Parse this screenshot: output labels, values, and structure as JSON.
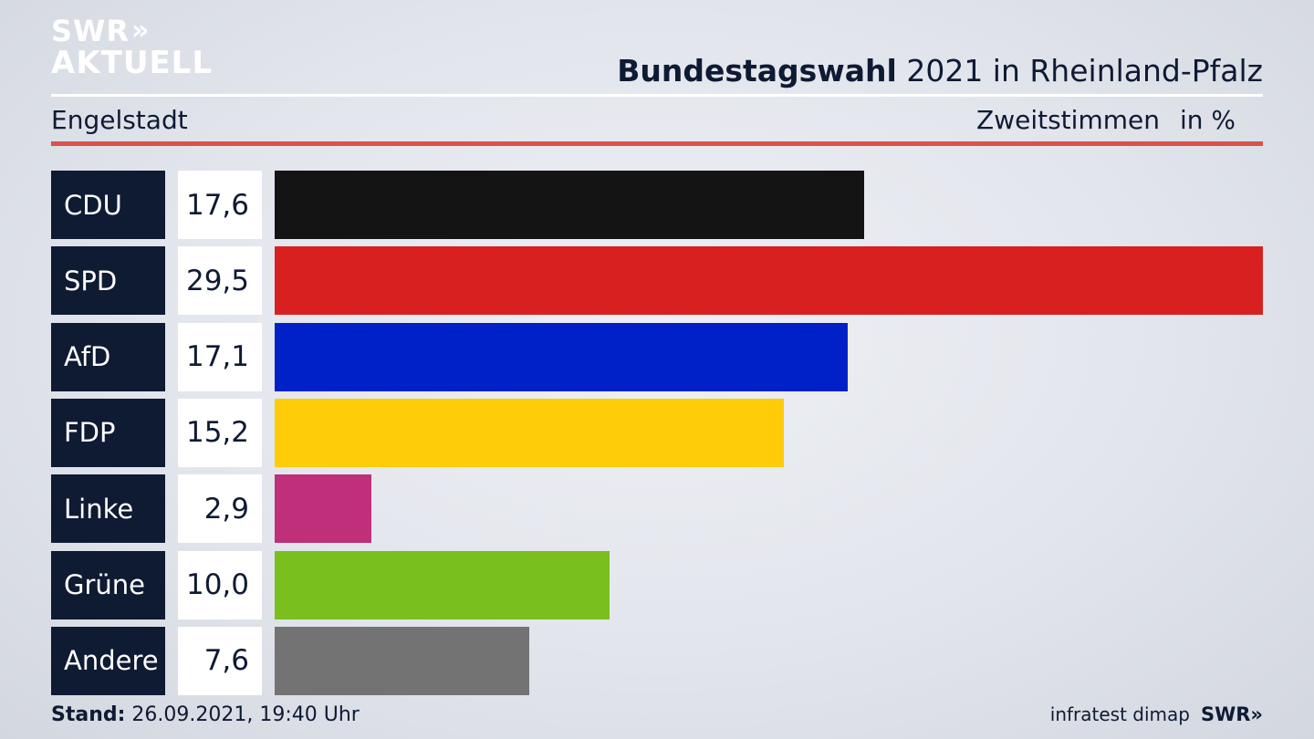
{
  "logo": {
    "line1": "SWR",
    "chevrons": "»",
    "line2": "AKTUELL"
  },
  "header": {
    "title_bold": "Bundestagswahl",
    "title_rest": " 2021 in Rheinland-Pfalz",
    "region": "Engelstadt",
    "measure": "Zweitstimmen",
    "unit": "in %"
  },
  "chart_data": {
    "type": "bar",
    "orientation": "horizontal",
    "title": "Bundestagswahl 2021 in Rheinland-Pfalz",
    "subtitle": "Engelstadt",
    "xlabel": "Zweitstimmen in %",
    "xlim": [
      0,
      29.5
    ],
    "categories": [
      "CDU",
      "SPD",
      "AfD",
      "FDP",
      "Linke",
      "Grüne",
      "Andere"
    ],
    "values": [
      17.6,
      29.5,
      17.1,
      15.2,
      2.9,
      10.0,
      7.6
    ],
    "value_labels": [
      "17,6",
      "29,5",
      "17,1",
      "15,2",
      "2,9",
      "10,0",
      "7,6"
    ],
    "colors": [
      "#141414",
      "#d92020",
      "#0021c8",
      "#ffcc0a",
      "#bf2f7a",
      "#79bf1d",
      "#737373"
    ]
  },
  "footer": {
    "stand_label": "Stand:",
    "stand_value": " 26.09.2021, 19:40 Uhr",
    "source": "infratest dimap",
    "logo": "SWR»"
  }
}
